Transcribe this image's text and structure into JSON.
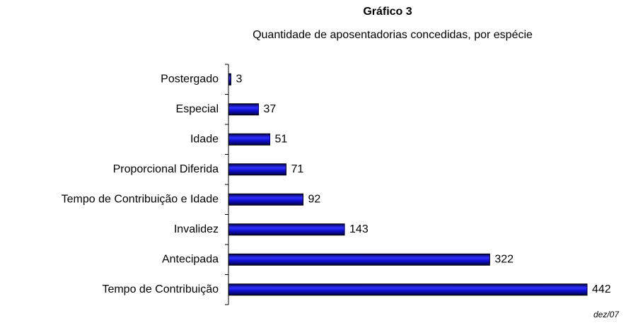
{
  "chart_data": {
    "type": "barh",
    "title": "Gráfico  3",
    "subtitle": "Quantidade de aposentadorias concedidas, por espécie",
    "categories": [
      "Postergado",
      "Especial",
      "Idade",
      "Proporcional Diferida",
      "Tempo de Contribuição e Idade",
      "Invalidez",
      "Antecipada",
      "Tempo de Contribuição"
    ],
    "values": [
      3,
      37,
      51,
      71,
      92,
      143,
      322,
      442
    ],
    "color": "#0000a0",
    "annotation": "dez/07"
  }
}
